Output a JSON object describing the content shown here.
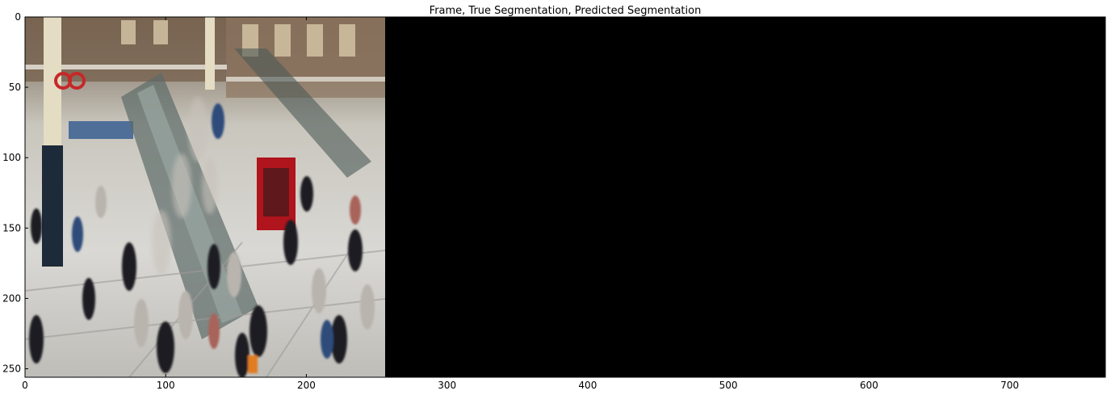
{
  "chart_data": {
    "type": "image",
    "title": "Frame, True Segmentation, Predicted Segmentation",
    "xlim": [
      0,
      768
    ],
    "ylim": [
      256,
      0
    ],
    "xticks": [
      0,
      100,
      200,
      300,
      400,
      500,
      600,
      700
    ],
    "yticks": [
      0,
      50,
      100,
      150,
      200,
      250
    ],
    "panels": [
      {
        "name": "Frame",
        "x_range": [
          0,
          256
        ],
        "content": "photo of crowded train station concourse with escalators"
      },
      {
        "name": "True Segmentation",
        "x_range": [
          256,
          512
        ],
        "content": "all black"
      },
      {
        "name": "Predicted Segmentation",
        "x_range": [
          512,
          768
        ],
        "content": "all black"
      }
    ],
    "colors": {
      "segmentation_fill": "#000000",
      "axes": "#000000"
    }
  }
}
